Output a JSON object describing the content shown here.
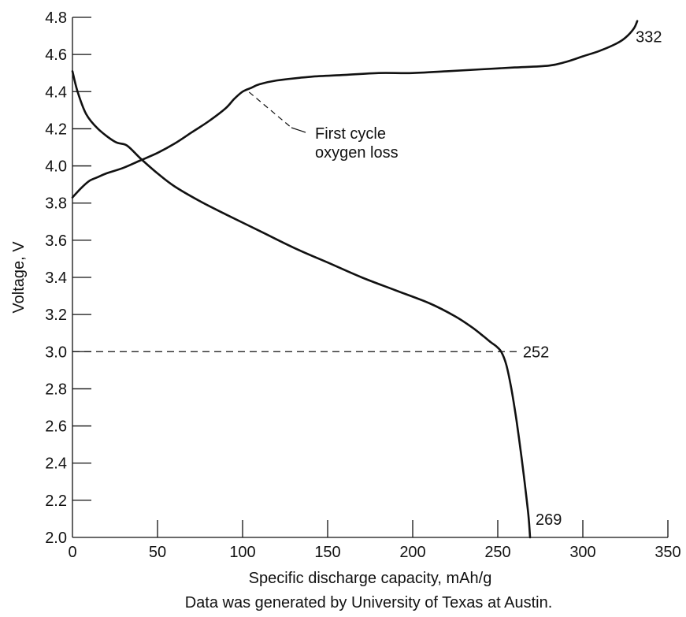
{
  "chart_data": {
    "type": "line",
    "title": "",
    "xlabel": "Specific discharge capacity, mAh/g",
    "ylabel": "Voltage, V",
    "caption": "Data was generated by University of Texas at Austin.",
    "xlim": [
      0,
      350
    ],
    "ylim": [
      2.0,
      4.8
    ],
    "xticks": [
      0,
      50,
      100,
      150,
      200,
      250,
      300,
      350
    ],
    "xtick_labels": [
      "0",
      "50",
      "100",
      "150",
      "200",
      "250",
      "300",
      "350"
    ],
    "yticks": [
      2.0,
      2.2,
      2.4,
      2.6,
      2.8,
      3.0,
      3.2,
      3.4,
      3.6,
      3.8,
      4.0,
      4.2,
      4.4,
      4.6,
      4.8
    ],
    "ytick_labels": [
      "2.0",
      "2.2",
      "2.4",
      "2.6",
      "2.8",
      "3.0",
      "3.2",
      "3.4",
      "3.6",
      "3.8",
      "4.0",
      "4.2",
      "4.4",
      "4.6",
      "4.8"
    ],
    "grid": false,
    "legend": "none",
    "line_color": "#111111",
    "series": [
      {
        "x": [
          0,
          5,
          10,
          15,
          20,
          30,
          40,
          50,
          60,
          70,
          80,
          90,
          95,
          100,
          105,
          110,
          120,
          140,
          160,
          180,
          200,
          220,
          240,
          260,
          280,
          290,
          300,
          310,
          320,
          325,
          330,
          332
        ],
        "y": [
          3.83,
          3.88,
          3.92,
          3.94,
          3.96,
          3.99,
          4.03,
          4.07,
          4.12,
          4.18,
          4.24,
          4.31,
          4.36,
          4.4,
          4.42,
          4.44,
          4.46,
          4.48,
          4.49,
          4.5,
          4.5,
          4.51,
          4.52,
          4.53,
          4.54,
          4.56,
          4.59,
          4.62,
          4.66,
          4.69,
          4.74,
          4.78
        ]
      },
      {
        "x": [
          0,
          3,
          8,
          15,
          25,
          32,
          40,
          50,
          60,
          75,
          90,
          110,
          130,
          150,
          170,
          190,
          210,
          225,
          235,
          242,
          246,
          249,
          252,
          255,
          258,
          261,
          264,
          266,
          268,
          269
        ],
        "y": [
          4.51,
          4.4,
          4.28,
          4.2,
          4.13,
          4.11,
          4.04,
          3.96,
          3.89,
          3.81,
          3.74,
          3.65,
          3.56,
          3.48,
          3.4,
          3.33,
          3.26,
          3.19,
          3.13,
          3.08,
          3.05,
          3.03,
          3.0,
          2.93,
          2.8,
          2.63,
          2.43,
          2.28,
          2.12,
          2.0
        ]
      }
    ],
    "reference_lines": [
      {
        "x1": 0,
        "y1": 3.0,
        "x2": 262,
        "y2": 3.0,
        "label": "252"
      }
    ],
    "annotations": [
      {
        "x": 102,
        "y": 4.41,
        "text_lines": [
          "First cycle",
          "oxygen loss"
        ]
      },
      {
        "x": 332,
        "y": 4.78,
        "text": "332"
      },
      {
        "x": 269,
        "y": 2.0,
        "text": "269"
      }
    ]
  }
}
